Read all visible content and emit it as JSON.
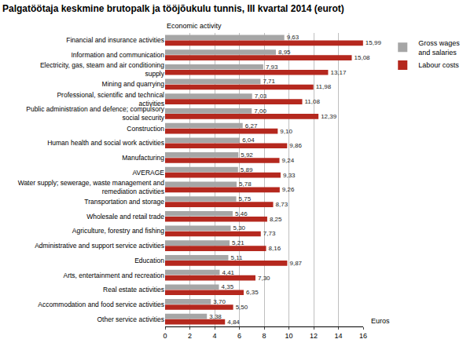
{
  "chart_data": {
    "type": "bar",
    "orientation": "horizontal",
    "title": "Palgatöötaja keskmine brutopalk ja tööjõukulu tunnis, III kvartal 2014 (eurot)",
    "y_label": "Economic activity",
    "x_label": "Euros",
    "categories": [
      "Financial and insurance activities",
      "Information and communication",
      "Electricity, gas, steam and air conditioning supply",
      "Mining and quarrying",
      "Professional, scientific and technical activities",
      "Public administration and defence; compulsory social security",
      "Construction",
      "Human health and social work activities",
      "Manufacturing",
      "AVERAGE",
      "Water supply; sewerage, waste management and remediation activities",
      "Transportation and storage",
      "Wholesale and retail trade",
      "Agriculture, forestry and fishing",
      "Administrative and support service activities",
      "Education",
      "Arts, entertainment and recreation",
      "Real estate activities",
      "Accommodation and food service activities",
      "Other service activities"
    ],
    "series": [
      {
        "name": "Gross wages and salaries",
        "color": "#a6a6a6",
        "values": [
          9.63,
          8.95,
          7.93,
          7.71,
          7.03,
          7.0,
          6.27,
          6.04,
          5.92,
          5.89,
          5.78,
          5.75,
          5.46,
          5.3,
          5.21,
          5.11,
          4.41,
          4.35,
          3.7,
          3.38
        ],
        "value_labels": [
          "9,63",
          "8,95",
          "7,93",
          "7,71",
          "7,03",
          "7,00",
          "6,27",
          "6,04",
          "5,92",
          "5,89",
          "5,78",
          "5,75",
          "5,46",
          "5,30",
          "5,21",
          "5,11",
          "4,41",
          "4,35",
          "3,70",
          "3,38"
        ]
      },
      {
        "name": "Labour costs",
        "color": "#b5281e",
        "values": [
          15.99,
          15.08,
          13.17,
          11.98,
          11.08,
          12.39,
          9.1,
          9.86,
          9.24,
          9.33,
          9.26,
          8.73,
          8.25,
          7.73,
          8.16,
          9.87,
          7.3,
          6.35,
          5.5,
          4.84
        ],
        "value_labels": [
          "15,99",
          "15,08",
          "13,17",
          "11,98",
          "11,08",
          "12,39",
          "9,10",
          "9,86",
          "9,24",
          "9,33",
          "9,26",
          "8,73",
          "8,25",
          "7,73",
          "8,16",
          "9,87",
          "7,30",
          "6,35",
          "5,50",
          "4,84"
        ]
      }
    ],
    "xlim": [
      0,
      16
    ],
    "xticks": [
      0,
      2,
      4,
      6,
      8,
      10,
      12,
      14,
      16
    ],
    "grid": true,
    "data_labels": true,
    "legend": "right"
  }
}
